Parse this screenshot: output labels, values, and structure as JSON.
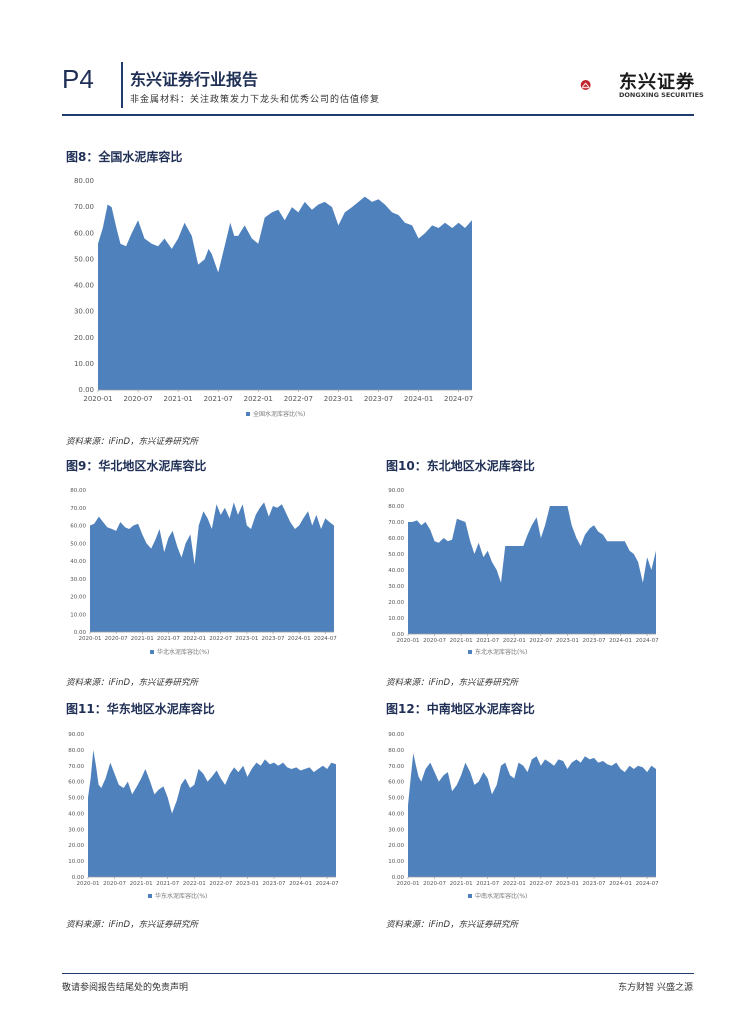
{
  "header": {
    "page_number": "P4",
    "report_title": "东兴证券行业报告",
    "report_subtitle": "非金属材料：关注政策发力下龙头和优秀公司的估值修复",
    "logo_cn": "东兴证券",
    "logo_en": "DONGXING SECURITIES",
    "brand_color": "#c0272d",
    "rule_color": "#1f3c6e"
  },
  "footer": {
    "left": "敬请参阅报告结尾处的免责声明",
    "right": "东方财智 兴盛之源"
  },
  "source_text": "资料来源：iFinD，东兴证券研究所",
  "chart_data": [
    {
      "id": "fig8",
      "type": "area",
      "title": "图8：全国水泥库容比",
      "legend": "全国水泥库容比(%)",
      "color": "#4f81bd",
      "ylim": [
        0,
        80
      ],
      "yticks": [
        "0.00",
        "10.00",
        "20.00",
        "30.00",
        "40.00",
        "50.00",
        "60.00",
        "70.00",
        "80.00"
      ],
      "xticks": [
        "2020-01",
        "2020-07",
        "2021-01",
        "2021-07",
        "2022-01",
        "2022-07",
        "2023-01",
        "2023-07",
        "2024-01",
        "2024-07"
      ],
      "x_range": [
        2020.0,
        2024.667
      ],
      "x": [
        2020.0,
        2020.06,
        2020.12,
        2020.17,
        2020.23,
        2020.28,
        2020.35,
        2020.42,
        2020.5,
        2020.58,
        2020.67,
        2020.75,
        2020.83,
        2020.92,
        2021.0,
        2021.08,
        2021.17,
        2021.25,
        2021.33,
        2021.38,
        2021.42,
        2021.5,
        2021.58,
        2021.65,
        2021.7,
        2021.75,
        2021.83,
        2021.92,
        2022.0,
        2022.08,
        2022.17,
        2022.25,
        2022.33,
        2022.42,
        2022.5,
        2022.58,
        2022.67,
        2022.75,
        2022.83,
        2022.92,
        2023.0,
        2023.08,
        2023.17,
        2023.25,
        2023.33,
        2023.42,
        2023.5,
        2023.58,
        2023.67,
        2023.75,
        2023.83,
        2023.92,
        2024.0,
        2024.08,
        2024.17,
        2024.25,
        2024.33,
        2024.42,
        2024.5,
        2024.58,
        2024.667
      ],
      "y": [
        56,
        62,
        71,
        70,
        62,
        56,
        55,
        60,
        65,
        58,
        56,
        55,
        58,
        54,
        58,
        64,
        59,
        48,
        50,
        54,
        52,
        45,
        55,
        64,
        59,
        59,
        63,
        58,
        56,
        66,
        68,
        69,
        65,
        70,
        68,
        72,
        69,
        71,
        72,
        70,
        63,
        68,
        70,
        72,
        74,
        72,
        73,
        71,
        68,
        67,
        64,
        63,
        58,
        60,
        63,
        62,
        64,
        62,
        64,
        62,
        65
      ]
    },
    {
      "id": "fig9",
      "type": "area",
      "title": "图9：华北地区水泥库容比",
      "legend": "华北水泥库容比(%)",
      "color": "#4f81bd",
      "ylim": [
        0,
        80
      ],
      "yticks": [
        "0.00",
        "10.00",
        "20.00",
        "30.00",
        "40.00",
        "50.00",
        "60.00",
        "70.00",
        "80.00"
      ],
      "xticks": [
        "2020-01",
        "2020-07",
        "2021-01",
        "2021-07",
        "2022-01",
        "2022-07",
        "2023-01",
        "2023-07",
        "2024-01",
        "2024-07"
      ],
      "x_range": [
        2020.0,
        2024.667
      ],
      "x": [
        2020.0,
        2020.08,
        2020.17,
        2020.25,
        2020.33,
        2020.42,
        2020.5,
        2020.58,
        2020.67,
        2020.75,
        2020.83,
        2020.92,
        2021.0,
        2021.08,
        2021.17,
        2021.25,
        2021.33,
        2021.42,
        2021.5,
        2021.58,
        2021.67,
        2021.75,
        2021.83,
        2021.92,
        2022.0,
        2022.08,
        2022.17,
        2022.25,
        2022.33,
        2022.42,
        2022.5,
        2022.58,
        2022.67,
        2022.75,
        2022.83,
        2022.92,
        2023.0,
        2023.08,
        2023.17,
        2023.25,
        2023.33,
        2023.42,
        2023.5,
        2023.58,
        2023.67,
        2023.75,
        2023.83,
        2023.92,
        2024.0,
        2024.08,
        2024.17,
        2024.25,
        2024.33,
        2024.42,
        2024.5,
        2024.58,
        2024.667
      ],
      "y": [
        60,
        61,
        65,
        62,
        59,
        58,
        57,
        62,
        59,
        58,
        60,
        61,
        55,
        50,
        47,
        52,
        58,
        45,
        53,
        57,
        48,
        42,
        50,
        55,
        38,
        60,
        68,
        64,
        58,
        72,
        66,
        70,
        64,
        73,
        66,
        72,
        60,
        58,
        66,
        70,
        73,
        65,
        71,
        70,
        72,
        67,
        62,
        58,
        60,
        64,
        68,
        60,
        66,
        58,
        64,
        62,
        60
      ]
    },
    {
      "id": "fig10",
      "type": "area",
      "title": "图10：东北地区水泥库容比",
      "legend": "东北水泥库容比(%)",
      "color": "#4f81bd",
      "ylim": [
        0,
        90
      ],
      "yticks": [
        "0.00",
        "10.00",
        "20.00",
        "30.00",
        "40.00",
        "50.00",
        "60.00",
        "70.00",
        "80.00",
        "90.00"
      ],
      "xticks": [
        "2020-01",
        "2020-07",
        "2021-01",
        "2021-07",
        "2022-01",
        "2022-07",
        "2023-01",
        "2023-07",
        "2024-01",
        "2024-07"
      ],
      "x_range": [
        2020.0,
        2024.667
      ],
      "x": [
        2020.0,
        2020.08,
        2020.17,
        2020.25,
        2020.33,
        2020.42,
        2020.5,
        2020.58,
        2020.67,
        2020.75,
        2020.83,
        2020.92,
        2021.0,
        2021.08,
        2021.17,
        2021.25,
        2021.33,
        2021.42,
        2021.5,
        2021.58,
        2021.67,
        2021.75,
        2021.83,
        2021.92,
        2022.0,
        2022.08,
        2022.17,
        2022.25,
        2022.33,
        2022.42,
        2022.5,
        2022.58,
        2022.67,
        2022.75,
        2022.83,
        2022.92,
        2023.0,
        2023.08,
        2023.17,
        2023.25,
        2023.33,
        2023.42,
        2023.5,
        2023.58,
        2023.67,
        2023.75,
        2023.83,
        2023.92,
        2024.0,
        2024.08,
        2024.17,
        2024.25,
        2024.33,
        2024.42,
        2024.5,
        2024.58,
        2024.667
      ],
      "y": [
        70,
        70,
        71,
        68,
        70,
        65,
        58,
        57,
        60,
        58,
        59,
        72,
        71,
        70,
        58,
        50,
        57,
        48,
        52,
        45,
        40,
        32,
        55,
        55,
        55,
        55,
        55,
        62,
        68,
        73,
        60,
        68,
        80,
        80,
        80,
        80,
        80,
        68,
        60,
        55,
        62,
        66,
        68,
        64,
        62,
        58,
        58,
        58,
        58,
        58,
        52,
        50,
        45,
        32,
        48,
        40,
        52
      ]
    },
    {
      "id": "fig11",
      "type": "area",
      "title": "图11：华东地区水泥库容比",
      "legend": "华东水泥库容比(%)",
      "color": "#4f81bd",
      "ylim": [
        0,
        90
      ],
      "yticks": [
        "0.00",
        "10.00",
        "20.00",
        "30.00",
        "40.00",
        "50.00",
        "60.00",
        "70.00",
        "80.00",
        "90.00"
      ],
      "xticks": [
        "2020-01",
        "2020-07",
        "2021-01",
        "2021-07",
        "2022-01",
        "2022-07",
        "2023-01",
        "2023-07",
        "2024-01",
        "2024-07"
      ],
      "x_range": [
        2020.0,
        2024.667
      ],
      "x": [
        2020.0,
        2020.05,
        2020.1,
        2020.15,
        2020.2,
        2020.25,
        2020.33,
        2020.42,
        2020.5,
        2020.58,
        2020.67,
        2020.75,
        2020.83,
        2020.92,
        2021.0,
        2021.08,
        2021.17,
        2021.25,
        2021.33,
        2021.42,
        2021.5,
        2021.58,
        2021.67,
        2021.75,
        2021.83,
        2021.92,
        2022.0,
        2022.08,
        2022.17,
        2022.25,
        2022.33,
        2022.42,
        2022.5,
        2022.58,
        2022.67,
        2022.75,
        2022.83,
        2022.92,
        2023.0,
        2023.08,
        2023.17,
        2023.25,
        2023.33,
        2023.42,
        2023.5,
        2023.58,
        2023.67,
        2023.75,
        2023.83,
        2023.92,
        2024.0,
        2024.08,
        2024.17,
        2024.25,
        2024.33,
        2024.42,
        2024.5,
        2024.58,
        2024.667
      ],
      "y": [
        50,
        62,
        80,
        70,
        58,
        56,
        62,
        72,
        65,
        58,
        56,
        60,
        52,
        57,
        62,
        68,
        60,
        52,
        55,
        57,
        50,
        40,
        48,
        58,
        62,
        56,
        58,
        68,
        65,
        60,
        63,
        67,
        62,
        58,
        65,
        69,
        66,
        70,
        63,
        68,
        72,
        70,
        74,
        71,
        72,
        70,
        72,
        69,
        68,
        69,
        67,
        68,
        69,
        66,
        68,
        70,
        68,
        72,
        71
      ]
    },
    {
      "id": "fig12",
      "type": "area",
      "title": "图12：中南地区水泥库容比",
      "legend": "中南水泥库容比(%)",
      "color": "#4f81bd",
      "ylim": [
        0,
        90
      ],
      "yticks": [
        "0.00",
        "10.00",
        "20.00",
        "30.00",
        "40.00",
        "50.00",
        "60.00",
        "70.00",
        "80.00",
        "90.00"
      ],
      "xticks": [
        "2020-01",
        "2020-07",
        "2021-01",
        "2021-07",
        "2022-01",
        "2022-07",
        "2023-01",
        "2023-07",
        "2024-01",
        "2024-07"
      ],
      "x_range": [
        2020.0,
        2024.667
      ],
      "x": [
        2020.0,
        2020.05,
        2020.1,
        2020.15,
        2020.2,
        2020.25,
        2020.33,
        2020.42,
        2020.5,
        2020.58,
        2020.67,
        2020.75,
        2020.83,
        2020.92,
        2021.0,
        2021.08,
        2021.17,
        2021.25,
        2021.33,
        2021.42,
        2021.5,
        2021.58,
        2021.67,
        2021.75,
        2021.83,
        2021.92,
        2022.0,
        2022.08,
        2022.17,
        2022.25,
        2022.33,
        2022.42,
        2022.5,
        2022.58,
        2022.67,
        2022.75,
        2022.83,
        2022.92,
        2023.0,
        2023.08,
        2023.17,
        2023.25,
        2023.33,
        2023.42,
        2023.5,
        2023.58,
        2023.67,
        2023.75,
        2023.83,
        2023.92,
        2024.0,
        2024.08,
        2024.17,
        2024.25,
        2024.33,
        2024.42,
        2024.5,
        2024.58,
        2024.667
      ],
      "y": [
        45,
        62,
        78,
        70,
        63,
        60,
        68,
        72,
        66,
        60,
        64,
        66,
        54,
        58,
        64,
        72,
        66,
        58,
        60,
        66,
        62,
        52,
        58,
        70,
        72,
        64,
        62,
        72,
        70,
        66,
        74,
        76,
        70,
        74,
        72,
        70,
        74,
        73,
        68,
        72,
        74,
        72,
        76,
        74,
        75,
        72,
        73,
        71,
        70,
        72,
        68,
        66,
        70,
        68,
        70,
        69,
        66,
        70,
        68
      ]
    }
  ]
}
